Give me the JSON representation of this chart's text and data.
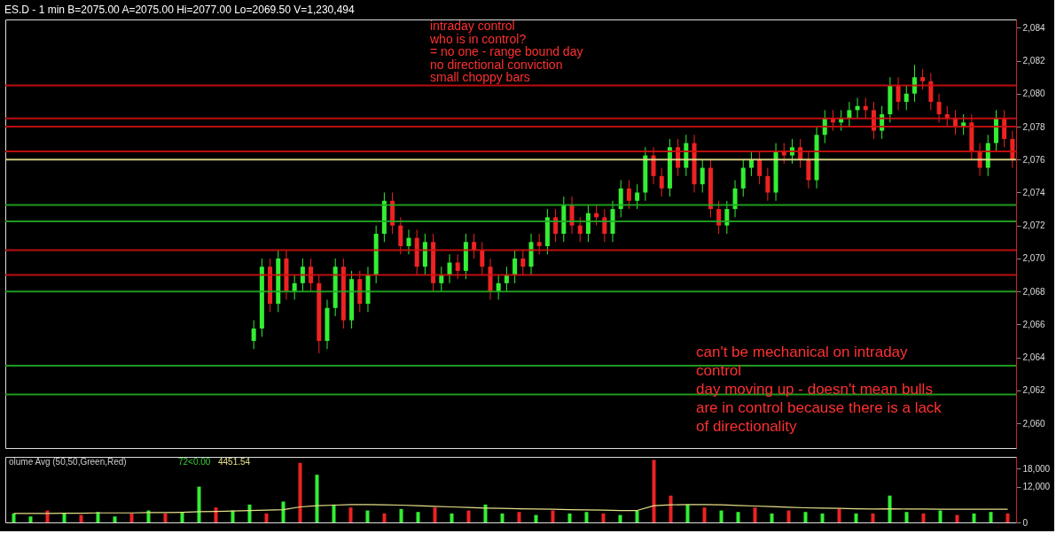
{
  "chart_data": [
    {
      "type": "candlestick",
      "title": "ES.D - 1 min   B=2075.00  A=2075.00   Hi=2077.00  Lo=2069.50  V=1,230,494",
      "categories": [
        null,
        null,
        null,
        null,
        null,
        null,
        null,
        null,
        null,
        null,
        null,
        null,
        null,
        null,
        null,
        null,
        null,
        null,
        null,
        null,
        null,
        null,
        null,
        null,
        null,
        null,
        null,
        null,
        null,
        null,
        null,
        null,
        null,
        null,
        null,
        null,
        null,
        null,
        null,
        null,
        null,
        null,
        null,
        null,
        null,
        null,
        null,
        null,
        null,
        null,
        null,
        null,
        null,
        null,
        null,
        null,
        null,
        null,
        null,
        null,
        null,
        null,
        null,
        null,
        null,
        null,
        null,
        null,
        null,
        null,
        null,
        null,
        null,
        null,
        null,
        null,
        null,
        null,
        null,
        null,
        null,
        null,
        null,
        null,
        null,
        null,
        null,
        null,
        null,
        null,
        null,
        null,
        null,
        null,
        null,
        null,
        null,
        null,
        null,
        null,
        null,
        null,
        null,
        null,
        null,
        null,
        null,
        null,
        null,
        null,
        null,
        null,
        null,
        null,
        null,
        null,
        null,
        null,
        null,
        null,
        null,
        null,
        null,
        null
      ],
      "ohlc": [
        null,
        null,
        null,
        null,
        null,
        null,
        null,
        null,
        null,
        null,
        null,
        null,
        null,
        null,
        null,
        null,
        null,
        null,
        null,
        null,
        null,
        null,
        null,
        null,
        null,
        null,
        null,
        null,
        null,
        null,
        [
          2065.0,
          2066.25,
          2064.5,
          2065.75
        ],
        [
          2065.75,
          2070.0,
          2065.25,
          2069.5
        ],
        [
          2069.5,
          2070.0,
          2066.75,
          2067.25
        ],
        [
          2067.25,
          2070.5,
          2066.75,
          2070.0
        ],
        [
          2070.0,
          2070.5,
          2067.5,
          2068.0
        ],
        [
          2068.0,
          2069.0,
          2067.5,
          2068.5
        ],
        [
          2068.5,
          2070.0,
          2068.0,
          2069.5
        ],
        [
          2069.5,
          2070.0,
          2068.0,
          2068.5
        ],
        [
          2068.5,
          2069.0,
          2064.25,
          2065.0
        ],
        [
          2065.0,
          2067.5,
          2064.5,
          2067.0
        ],
        [
          2067.0,
          2070.0,
          2066.5,
          2069.5
        ],
        [
          2069.5,
          2070.0,
          2065.75,
          2066.25
        ],
        [
          2066.25,
          2069.25,
          2065.75,
          2068.75
        ],
        [
          2068.75,
          2069.25,
          2066.75,
          2067.25
        ],
        [
          2067.25,
          2069.5,
          2066.75,
          2069.0
        ],
        [
          2069.0,
          2072.0,
          2068.5,
          2071.5
        ],
        [
          2071.5,
          2074.0,
          2071.0,
          2073.5
        ],
        [
          2073.5,
          2074.0,
          2071.5,
          2072.0
        ],
        [
          2072.0,
          2072.5,
          2070.25,
          2070.75
        ],
        [
          2070.75,
          2071.75,
          2070.25,
          2071.25
        ],
        [
          2071.25,
          2071.75,
          2069.0,
          2069.5
        ],
        [
          2069.5,
          2071.5,
          2069.0,
          2071.0
        ],
        [
          2071.0,
          2071.5,
          2068.0,
          2068.5
        ],
        [
          2068.5,
          2069.5,
          2068.0,
          2069.0
        ],
        [
          2069.0,
          2070.25,
          2068.5,
          2069.75
        ],
        [
          2069.75,
          2070.25,
          2068.75,
          2069.25
        ],
        [
          2069.25,
          2071.5,
          2068.75,
          2071.0
        ],
        [
          2071.0,
          2071.5,
          2070.0,
          2070.5
        ],
        [
          2070.5,
          2071.0,
          2069.0,
          2069.5
        ],
        [
          2069.5,
          2070.0,
          2067.5,
          2068.0
        ],
        [
          2068.0,
          2069.0,
          2067.5,
          2068.5
        ],
        [
          2068.5,
          2069.5,
          2068.0,
          2069.0
        ],
        [
          2069.0,
          2070.5,
          2068.5,
          2070.0
        ],
        [
          2070.0,
          2070.5,
          2069.0,
          2069.5
        ],
        [
          2069.5,
          2071.5,
          2069.0,
          2071.0
        ],
        [
          2071.0,
          2071.5,
          2070.25,
          2070.75
        ],
        [
          2070.75,
          2073.0,
          2070.25,
          2072.5
        ],
        [
          2072.5,
          2073.0,
          2071.0,
          2071.5
        ],
        [
          2071.5,
          2073.75,
          2071.0,
          2073.25
        ],
        [
          2073.25,
          2073.75,
          2071.5,
          2072.0
        ],
        [
          2072.0,
          2072.5,
          2071.0,
          2071.5
        ],
        [
          2071.5,
          2073.25,
          2071.0,
          2072.75
        ],
        [
          2072.75,
          2073.25,
          2072.0,
          2072.5
        ],
        [
          2072.5,
          2073.0,
          2071.0,
          2071.5
        ],
        [
          2071.5,
          2073.5,
          2071.0,
          2073.0
        ],
        [
          2073.0,
          2074.75,
          2072.5,
          2074.25
        ],
        [
          2074.25,
          2074.75,
          2073.0,
          2073.5
        ],
        [
          2073.5,
          2074.5,
          2073.0,
          2074.0
        ],
        [
          2074.0,
          2076.75,
          2073.5,
          2076.25
        ],
        [
          2076.25,
          2076.75,
          2074.5,
          2075.0
        ],
        [
          2075.0,
          2075.5,
          2073.75,
          2074.25
        ],
        [
          2074.25,
          2077.25,
          2073.75,
          2076.75
        ],
        [
          2076.75,
          2077.25,
          2075.0,
          2075.5
        ],
        [
          2075.5,
          2077.5,
          2075.0,
          2077.0
        ],
        [
          2077.0,
          2077.5,
          2074.0,
          2074.5
        ],
        [
          2074.5,
          2076.0,
          2074.0,
          2075.5
        ],
        [
          2075.5,
          2076.0,
          2072.5,
          2073.0
        ],
        [
          2073.0,
          2073.5,
          2071.5,
          2072.0
        ],
        [
          2072.0,
          2073.5,
          2071.5,
          2073.0
        ],
        [
          2073.0,
          2074.75,
          2072.5,
          2074.25
        ],
        [
          2074.25,
          2076.0,
          2073.75,
          2075.5
        ],
        [
          2075.5,
          2076.5,
          2075.0,
          2076.0
        ],
        [
          2076.0,
          2076.5,
          2074.5,
          2075.0
        ],
        [
          2075.0,
          2075.5,
          2073.5,
          2074.0
        ],
        [
          2074.0,
          2077.0,
          2073.5,
          2076.5
        ],
        [
          2076.5,
          2077.0,
          2075.75,
          2076.25
        ],
        [
          2076.25,
          2077.25,
          2075.75,
          2076.75
        ],
        [
          2076.75,
          2077.25,
          2075.5,
          2076.0
        ],
        [
          2076.0,
          2076.5,
          2074.25,
          2074.75
        ],
        [
          2074.75,
          2078.0,
          2074.25,
          2077.5
        ],
        [
          2077.5,
          2079.0,
          2077.0,
          2078.5
        ],
        [
          2078.5,
          2079.0,
          2077.75,
          2078.25
        ],
        [
          2078.25,
          2079.0,
          2077.75,
          2078.5
        ],
        [
          2078.5,
          2079.5,
          2078.0,
          2079.0
        ],
        [
          2079.0,
          2079.75,
          2078.5,
          2079.25
        ],
        [
          2079.25,
          2079.75,
          2078.5,
          2079.0
        ],
        [
          2079.0,
          2079.5,
          2077.25,
          2077.75
        ],
        [
          2077.75,
          2079.25,
          2077.25,
          2078.75
        ],
        [
          2078.75,
          2081.0,
          2078.25,
          2080.5
        ],
        [
          2080.5,
          2081.0,
          2079.0,
          2079.5
        ],
        [
          2079.5,
          2080.5,
          2079.0,
          2080.0
        ],
        [
          2080.0,
          2081.75,
          2079.5,
          2081.0
        ],
        [
          2081.0,
          2081.5,
          2080.25,
          2080.75
        ],
        [
          2080.75,
          2081.25,
          2079.0,
          2079.5
        ],
        [
          2079.5,
          2080.0,
          2078.25,
          2078.75
        ],
        [
          2078.75,
          2079.25,
          2078.0,
          2078.5
        ],
        [
          2078.5,
          2079.0,
          2077.5,
          2078.0
        ],
        [
          2078.0,
          2078.75,
          2077.5,
          2078.25
        ],
        [
          2078.25,
          2078.75,
          2076.0,
          2076.5
        ],
        [
          2076.5,
          2077.0,
          2075.0,
          2075.5
        ],
        [
          2075.5,
          2077.5,
          2075.0,
          2077.0
        ],
        [
          2077.0,
          2079.0,
          2076.5,
          2078.5
        ],
        [
          2078.5,
          2079.0,
          2076.75,
          2077.25
        ],
        [
          2077.25,
          2077.75,
          2075.5,
          2076.0
        ]
      ],
      "colors": [
        null,
        null,
        null,
        null,
        null,
        null,
        null,
        null,
        null,
        null,
        null,
        null,
        null,
        null,
        null,
        null,
        null,
        null,
        null,
        null,
        null,
        null,
        null,
        null,
        null,
        null,
        null,
        null,
        null,
        null,
        "#33ee33",
        "#33ee33",
        "#ee2222",
        "#33ee33",
        "#ee2222",
        "#33ee33",
        "#33ee33",
        "#ee2222",
        "#ee2222",
        "#33ee33",
        "#33ee33",
        "#ee2222",
        "#33ee33",
        "#ee2222",
        "#33ee33",
        "#33ee33",
        "#33ee33",
        "#ee2222",
        "#ee2222",
        "#33ee33",
        "#ee2222",
        "#33ee33",
        "#ee2222",
        "#33ee33",
        "#33ee33",
        "#ee2222",
        "#33ee33",
        "#ee2222",
        "#ee2222",
        "#ee2222",
        "#33ee33",
        "#33ee33",
        "#33ee33",
        "#ee2222",
        "#33ee33",
        "#ee2222",
        "#33ee33",
        "#ee2222",
        "#33ee33",
        "#ee2222",
        "#ee2222",
        "#33ee33",
        "#ee2222",
        "#ee2222",
        "#33ee33",
        "#33ee33",
        "#ee2222",
        "#33ee33",
        "#33ee33",
        "#ee2222",
        "#ee2222",
        "#33ee33",
        "#ee2222",
        "#33ee33",
        "#ee2222",
        "#33ee33",
        "#ee2222",
        "#ee2222",
        "#33ee33",
        "#33ee33",
        "#33ee33",
        "#33ee33",
        "#ee2222",
        "#ee2222",
        "#33ee33",
        "#ee2222",
        "#33ee33",
        "#ee2222",
        "#ee2222",
        "#33ee33",
        "#33ee33",
        "#ee2222",
        "#33ee33",
        "#33ee33",
        "#33ee33",
        "#ee2222",
        "#ee2222",
        "#33ee33",
        "#33ee33",
        "#ee2222",
        "#33ee33",
        "#33ee33",
        "#ee2222",
        "#ee2222",
        "#ee2222",
        "#ee2222",
        "#ee2222",
        "#33ee33",
        "#ee2222",
        "#ee2222",
        "#33ee33",
        "#33ee33",
        "#ee2222",
        "#ee2222"
      ],
      "ylim": [
        2058.5,
        2084.5
      ],
      "yticks": [
        {
          "value": 2060,
          "label": "2,060"
        },
        {
          "value": 2062,
          "label": "2,062"
        },
        {
          "value": 2064,
          "label": "2,064"
        },
        {
          "value": 2066,
          "label": "2,066"
        },
        {
          "value": 2068,
          "label": "2,068"
        },
        {
          "value": 2070,
          "label": "2,070"
        },
        {
          "value": 2072,
          "label": "2,072"
        },
        {
          "value": 2074,
          "label": "2,074"
        },
        {
          "value": 2076,
          "label": "2,076"
        },
        {
          "value": 2078,
          "label": "2,078"
        },
        {
          "value": 2080,
          "label": "2,080"
        },
        {
          "value": 2082,
          "label": "2,082"
        },
        {
          "value": 2084,
          "label": "2,084"
        }
      ],
      "ref_lines": [
        {
          "axis": "y",
          "value": 2080.5,
          "color": "#d01010"
        },
        {
          "axis": "y",
          "value": 2078.5,
          "color": "#d01010"
        },
        {
          "axis": "y",
          "value": 2078.0,
          "color": "#d01010"
        },
        {
          "axis": "y",
          "value": 2076.5,
          "color": "#d01010"
        },
        {
          "axis": "y",
          "value": 2076.0,
          "color": "#e6e08a"
        },
        {
          "axis": "y",
          "value": 2073.25,
          "color": "#22aa22"
        },
        {
          "axis": "y",
          "value": 2072.25,
          "color": "#22aa22"
        },
        {
          "axis": "y",
          "value": 2070.5,
          "color": "#d01010"
        },
        {
          "axis": "y",
          "value": 2069.0,
          "color": "#d01010"
        },
        {
          "axis": "y",
          "value": 2068.0,
          "color": "#22aa22"
        },
        {
          "axis": "y",
          "value": 2063.5,
          "color": "#22aa22"
        },
        {
          "axis": "y",
          "value": 2061.75,
          "color": "#22aa22"
        }
      ],
      "annotations": [
        "intraday control\nwho is in control?\n= no one - range bound day\nno directional conviction\nsmall choppy bars",
        "can't be mechanical on intraday\ncontrol\nday moving up - doesn't mean bulls\nare in control because there is a lack\nof directionality"
      ],
      "tick_labels": "y",
      "grid": false
    },
    {
      "type": "bar",
      "categories": [
        null,
        null,
        null,
        null,
        null,
        null,
        null,
        null,
        null,
        null,
        null,
        null,
        null,
        null,
        null,
        null,
        null,
        null,
        null,
        null,
        null,
        null,
        null,
        null,
        null,
        null,
        null,
        null,
        null,
        null,
        null,
        null,
        null,
        null,
        null,
        null,
        null,
        null,
        null,
        null,
        null,
        null,
        null,
        null,
        null,
        null,
        null,
        null,
        null,
        null,
        null,
        null,
        null,
        null,
        null,
        null,
        null,
        null,
        null,
        null
      ],
      "series": [
        {
          "type": "bar",
          "values": [
            3000,
            2000,
            4000,
            3000,
            2500,
            3500,
            2000,
            3000,
            4000,
            3000,
            3500,
            12000,
            5000,
            4000,
            6000,
            3000,
            7000,
            20000,
            16000,
            6000,
            5000,
            4000,
            3000,
            4500,
            3500,
            5000,
            3000,
            4000,
            6000,
            3000,
            3500,
            2500,
            4000,
            3000,
            3500,
            3000,
            2500,
            4000,
            21000,
            9000,
            6000,
            5000,
            4000,
            3500,
            5000,
            3000,
            4000,
            3500,
            3000,
            4500,
            3000,
            3000,
            9000,
            3500,
            3000,
            4000,
            2500,
            3000,
            3500,
            3000
          ],
          "colors": [
            "#33ee33",
            "#33ee33",
            "#ee2222",
            "#33ee33",
            "#ee2222",
            "#33ee33",
            "#33ee33",
            "#ee2222",
            "#33ee33",
            "#ee2222",
            "#33ee33",
            "#33ee33",
            "#ee2222",
            "#33ee33",
            "#33ee33",
            "#ee2222",
            "#33ee33",
            "#ee2222",
            "#33ee33",
            "#33ee33",
            "#ee2222",
            "#33ee33",
            "#ee2222",
            "#33ee33",
            "#33ee33",
            "#ee2222",
            "#33ee33",
            "#ee2222",
            "#33ee33",
            "#33ee33",
            "#ee2222",
            "#33ee33",
            "#ee2222",
            "#33ee33",
            "#33ee33",
            "#ee2222",
            "#33ee33",
            "#33ee33",
            "#ee2222",
            "#ee2222",
            "#33ee33",
            "#ee2222",
            "#33ee33",
            "#33ee33",
            "#ee2222",
            "#33ee33",
            "#ee2222",
            "#33ee33",
            "#33ee33",
            "#ee2222",
            "#33ee33",
            "#ee2222",
            "#33ee33",
            "#33ee33",
            "#ee2222",
            "#33ee33",
            "#ee2222",
            "#33ee33",
            "#33ee33",
            "#ee2222"
          ]
        },
        {
          "type": "line",
          "color": "#e6e08a",
          "values": [
            3000,
            3000,
            3000,
            3100,
            3100,
            3200,
            3200,
            3200,
            3300,
            3300,
            3400,
            3600,
            3700,
            3800,
            4000,
            4100,
            4300,
            5200,
            5600,
            5800,
            6000,
            6000,
            5900,
            5800,
            5600,
            5400,
            5200,
            5000,
            4800,
            4700,
            4600,
            4500,
            4400,
            4300,
            4200,
            4100,
            4000,
            4000,
            5600,
            5900,
            6000,
            6000,
            5900,
            5700,
            5500,
            5300,
            5100,
            4900,
            4800,
            4700,
            4600,
            4500,
            4600,
            4500,
            4500,
            4400,
            4400,
            4450,
            4450,
            4450
          ]
        }
      ],
      "ylim": [
        0,
        22000
      ],
      "yticks": [
        0,
        {
          "value": 12000,
          "label": "12,000"
        },
        {
          "value": 18000,
          "label": "18,000"
        }
      ],
      "annotations": [
        "olume Avg (50,50,Green,Red)",
        "72<0.00",
        "4451.54"
      ],
      "tick_labels": "y",
      "grid": false
    }
  ]
}
